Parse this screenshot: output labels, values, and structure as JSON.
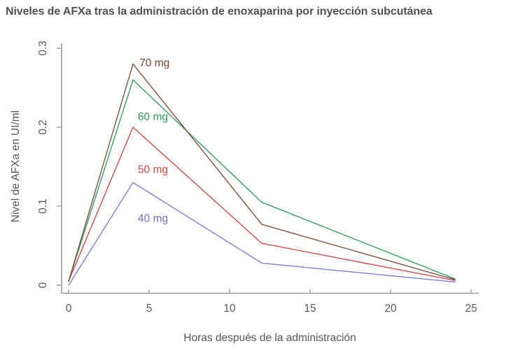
{
  "title": "Niveles de AFXa tras la administración de enoxaparina por inyección subcutánea",
  "chart_data": {
    "type": "line",
    "title": "Niveles de AFXa tras la administración de enoxaparina por inyección subcutánea",
    "xlabel": "Horas después de la administración",
    "ylabel": "Nivel de AFXa en UI/ml",
    "x": [
      0,
      4,
      12,
      24
    ],
    "xticks": [
      0,
      5,
      10,
      15,
      20,
      25
    ],
    "ytick_labels": [
      "0",
      "0.1",
      "0.2",
      "0.3"
    ],
    "ytick_values": [
      0,
      0.1,
      0.2,
      0.3
    ],
    "xlim": [
      0,
      25
    ],
    "ylim": [
      0,
      0.3
    ],
    "grid": false,
    "legend": "inline-labels",
    "axis_color": "#97999c",
    "tick_label_color": "#58595b",
    "axis_title_color": "#54565a",
    "series": [
      {
        "name": "70 mg",
        "color": "#7d513f",
        "label_color": "#74422e",
        "values": [
          0.005,
          0.28,
          0.077,
          0.007
        ],
        "label_x": 4.4,
        "label_y": 0.277
      },
      {
        "name": "60 mg",
        "color": "#349e62",
        "label_color": "#2f9c58",
        "values": [
          0.005,
          0.26,
          0.105,
          0.008
        ],
        "label_x": 4.3,
        "label_y": 0.209
      },
      {
        "name": "50 mg",
        "color": "#d24a48",
        "label_color": "#d84343",
        "values": [
          0.005,
          0.2,
          0.053,
          0.006
        ],
        "label_x": 4.3,
        "label_y": 0.142
      },
      {
        "name": "40 mg",
        "color": "#7d81d1",
        "label_color": "#6b70cd",
        "values": [
          0.0,
          0.13,
          0.028,
          0.004
        ],
        "label_x": 4.3,
        "label_y": 0.08
      }
    ]
  }
}
